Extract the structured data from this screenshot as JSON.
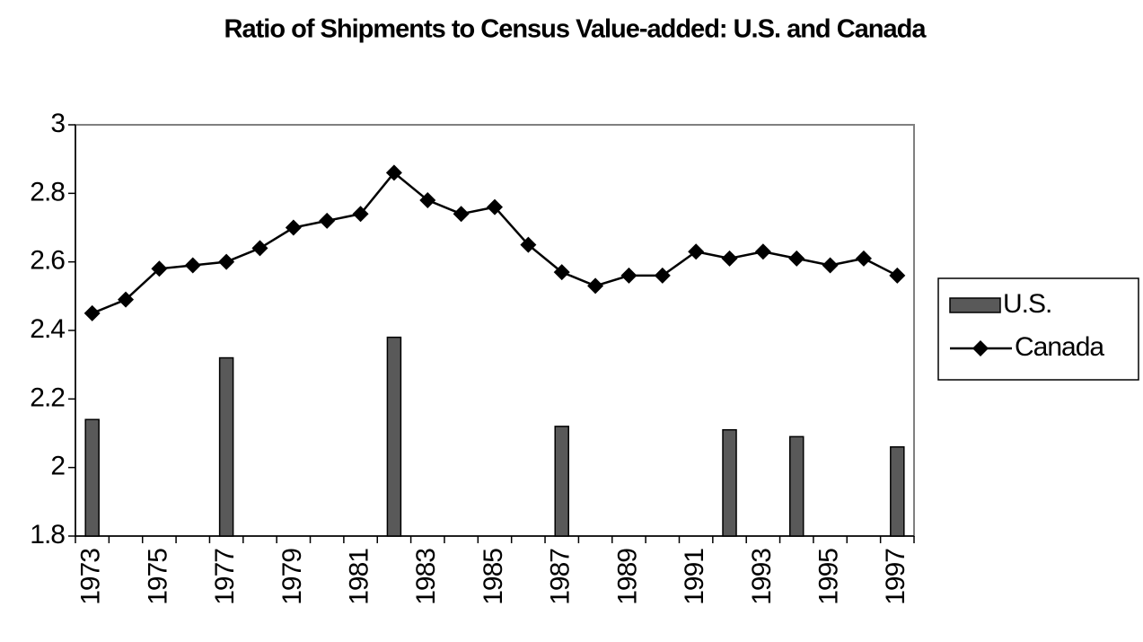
{
  "chart_data": {
    "type": "bar-line",
    "title": "Ratio of Shipments to Census Value-added: U.S. and Canada",
    "categories": [
      "1973",
      null,
      "1975",
      null,
      "1977",
      null,
      "1979",
      null,
      "1981",
      null,
      "1983",
      null,
      "1985",
      null,
      "1987",
      null,
      "1989",
      null,
      "1991",
      null,
      "1993",
      null,
      "1995",
      null,
      "1997"
    ],
    "series": [
      {
        "name": "U.S.",
        "type": "bar",
        "color": "#595959",
        "values": [
          2.14,
          null,
          null,
          null,
          2.32,
          null,
          null,
          null,
          null,
          2.38,
          null,
          null,
          null,
          null,
          2.12,
          null,
          null,
          null,
          null,
          2.11,
          null,
          2.09,
          null,
          null,
          2.06
        ]
      },
      {
        "name": "Canada",
        "type": "line",
        "color": "#000000",
        "values": [
          2.45,
          2.49,
          2.58,
          2.59,
          2.6,
          2.64,
          2.7,
          2.72,
          2.74,
          2.86,
          2.78,
          2.74,
          2.76,
          2.65,
          2.57,
          2.53,
          2.56,
          2.56,
          2.63,
          2.61,
          2.63,
          2.61,
          2.59,
          2.61,
          2.56
        ]
      }
    ],
    "ylim": [
      1.8,
      3
    ],
    "yticks": [
      1.8,
      2,
      2.2,
      2.4,
      2.6,
      2.8,
      3
    ],
    "grid": false,
    "legend": "right"
  }
}
